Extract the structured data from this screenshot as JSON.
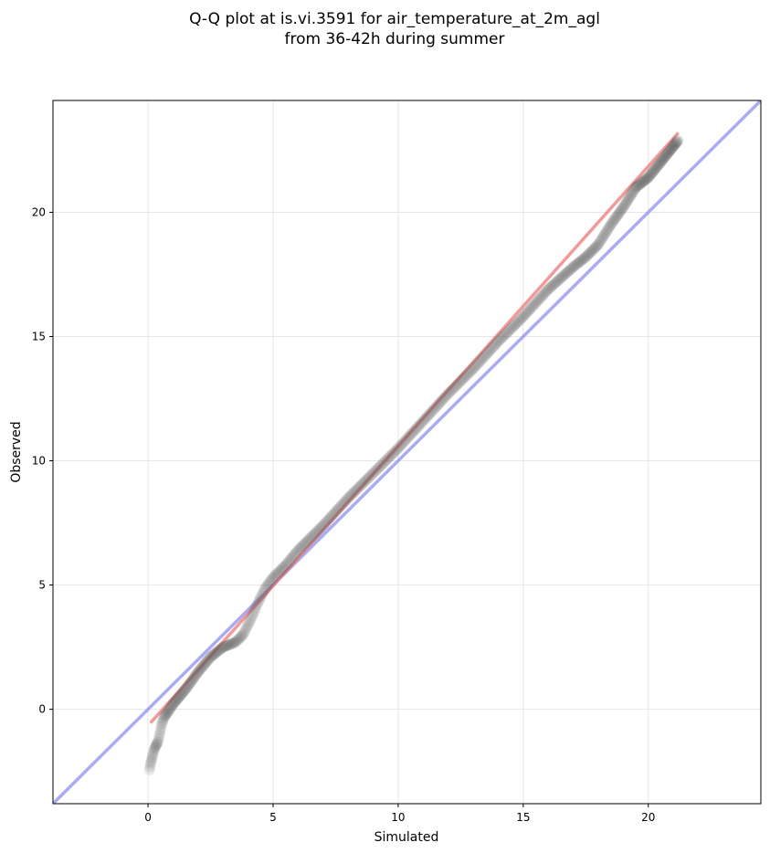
{
  "chart_data": {
    "type": "scatter",
    "title": [
      "Q-Q plot at is.vi.3591 for air_temperature_at_2m_agl",
      "from 36-42h during summer"
    ],
    "xlabel": "Simulated",
    "ylabel": "Observed",
    "xlim": [
      -3.8,
      24.5
    ],
    "ylim": [
      -3.8,
      24.5
    ],
    "x_ticks": [
      0,
      5,
      10,
      15,
      20
    ],
    "y_ticks": [
      0,
      5,
      10,
      15,
      20
    ],
    "grid": true,
    "colors": {
      "points": "#555555",
      "fit_line": "#ee7777",
      "identity_line": "#8888ee",
      "grid": "#e6e6e6"
    },
    "fit_line": {
      "x": [
        0.1,
        21.2
      ],
      "y": [
        -0.55,
        23.2
      ]
    },
    "identity_line": {
      "x": [
        -3.8,
        24.5
      ],
      "y": [
        -3.8,
        24.5
      ]
    },
    "quantile_anchors": {
      "x": [
        0.05,
        0.1,
        0.25,
        0.4,
        0.55,
        0.65,
        0.8,
        1.0,
        1.5,
        2.0,
        2.5,
        3.0,
        3.5,
        3.8,
        4.1,
        4.4,
        4.7,
        5.0,
        5.5,
        6.0,
        7.0,
        8.0,
        9.0,
        10.0,
        11.0,
        12.0,
        13.0,
        14.0,
        15.0,
        16.0,
        17.0,
        17.5,
        18.0,
        18.5,
        19.0,
        19.5,
        20.0,
        21.2
      ],
      "y": [
        -2.5,
        -2.2,
        -1.6,
        -1.3,
        -0.6,
        -0.3,
        -0.1,
        0.2,
        0.8,
        1.5,
        2.1,
        2.5,
        2.7,
        3.0,
        3.6,
        4.3,
        4.9,
        5.3,
        5.8,
        6.4,
        7.4,
        8.5,
        9.5,
        10.5,
        11.6,
        12.7,
        13.7,
        14.8,
        15.8,
        16.9,
        17.8,
        18.2,
        18.7,
        19.5,
        20.2,
        21.0,
        21.4,
        22.9
      ]
    },
    "n_points": 500
  }
}
